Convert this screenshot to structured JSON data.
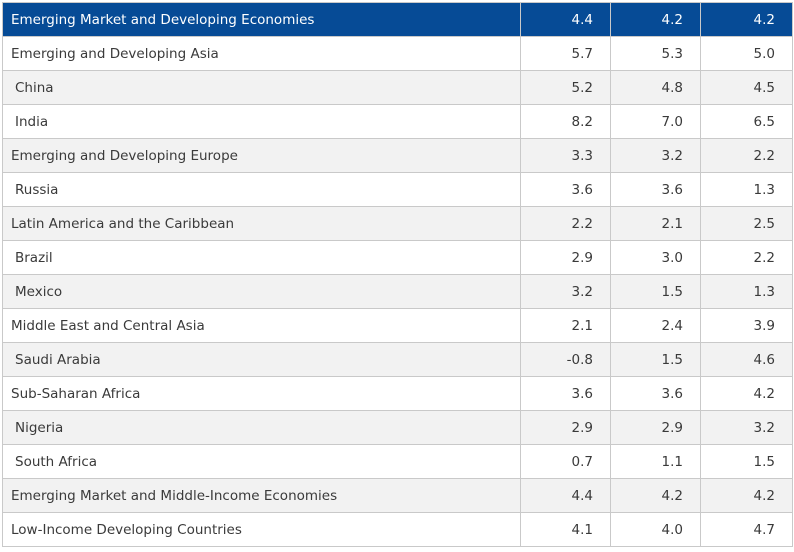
{
  "chart_data": {
    "type": "table",
    "columns": [
      "",
      "",
      "",
      ""
    ],
    "rows": [
      {
        "label": "Emerging Market and Developing Economies",
        "values": [
          "4.4",
          "4.2",
          "4.2"
        ],
        "level": 0,
        "header": true
      },
      {
        "label": "Emerging and Developing Asia",
        "values": [
          "5.7",
          "5.3",
          "5.0"
        ],
        "level": 0
      },
      {
        "label": "China",
        "values": [
          "5.2",
          "4.8",
          "4.5"
        ],
        "level": 1
      },
      {
        "label": "India",
        "values": [
          "8.2",
          "7.0",
          "6.5"
        ],
        "level": 1
      },
      {
        "label": "Emerging and Developing Europe",
        "values": [
          "3.3",
          "3.2",
          "2.2"
        ],
        "level": 0
      },
      {
        "label": "Russia",
        "values": [
          "3.6",
          "3.6",
          "1.3"
        ],
        "level": 1
      },
      {
        "label": "Latin America and the Caribbean",
        "values": [
          "2.2",
          "2.1",
          "2.5"
        ],
        "level": 0
      },
      {
        "label": "Brazil",
        "values": [
          "2.9",
          "3.0",
          "2.2"
        ],
        "level": 1
      },
      {
        "label": "Mexico",
        "values": [
          "3.2",
          "1.5",
          "1.3"
        ],
        "level": 1
      },
      {
        "label": "Middle East and Central Asia",
        "values": [
          "2.1",
          "2.4",
          "3.9"
        ],
        "level": 0
      },
      {
        "label": "Saudi Arabia",
        "values": [
          "-0.8",
          "1.5",
          "4.6"
        ],
        "level": 1
      },
      {
        "label": "Sub-Saharan Africa",
        "values": [
          "3.6",
          "3.6",
          "4.2"
        ],
        "level": 0
      },
      {
        "label": "Nigeria",
        "values": [
          "2.9",
          "2.9",
          "3.2"
        ],
        "level": 1
      },
      {
        "label": "South Africa",
        "values": [
          "0.7",
          "1.1",
          "1.5"
        ],
        "level": 1
      },
      {
        "label": "Emerging Market and Middle-Income Economies",
        "values": [
          "4.4",
          "4.2",
          "4.2"
        ],
        "level": 0
      },
      {
        "label": "Low-Income Developing Countries",
        "values": [
          "4.1",
          "4.0",
          "4.7"
        ],
        "level": 0
      }
    ]
  },
  "colors": {
    "header_bg": "#064b96",
    "header_text": "#ffffff",
    "stripe_bg": "#f2f2f2",
    "text": "#3a3a3a",
    "border": "#c9c9c9"
  }
}
